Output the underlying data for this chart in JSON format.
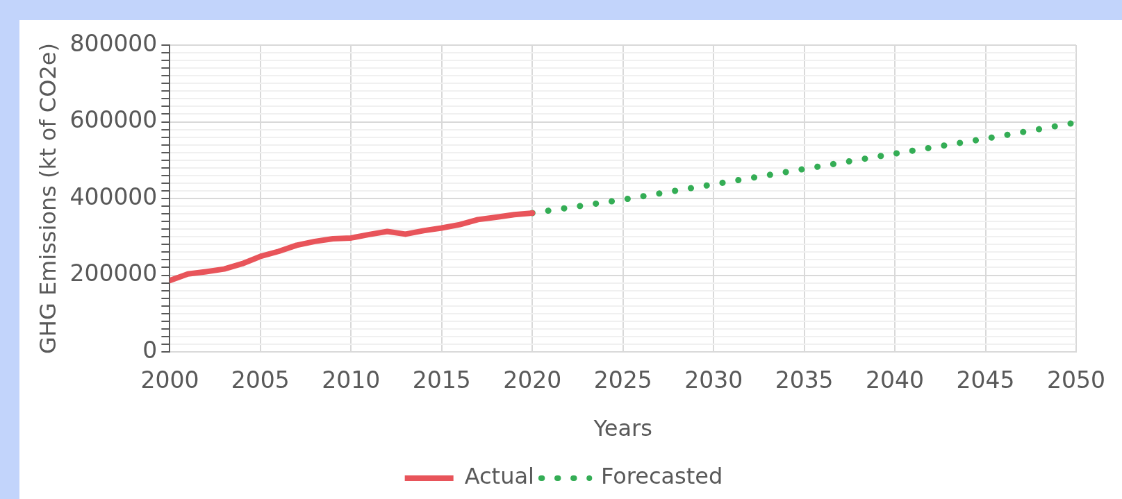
{
  "chart_data": {
    "type": "line",
    "xlabel": "Years",
    "ylabel": "GHG Emissions (kt of CO2e)",
    "xlim": [
      2000,
      2050
    ],
    "xticks": [
      2000,
      2005,
      2010,
      2015,
      2020,
      2025,
      2030,
      2035,
      2040,
      2045,
      2050
    ],
    "ylim": [
      0,
      800000
    ],
    "yticks": [
      0,
      {
        "value": 20000,
        "label": null
      },
      {
        "value": 40000,
        "label": null
      },
      {
        "value": 60000,
        "label": null
      },
      {
        "value": 80000,
        "label": null
      },
      {
        "value": 100000,
        "label": null
      },
      {
        "value": 120000,
        "label": null
      },
      {
        "value": 140000,
        "label": null
      },
      {
        "value": 160000,
        "label": null
      },
      {
        "value": 180000,
        "label": null
      },
      200000,
      {
        "value": 220000,
        "label": null
      },
      {
        "value": 240000,
        "label": null
      },
      {
        "value": 260000,
        "label": null
      },
      {
        "value": 280000,
        "label": null
      },
      {
        "value": 300000,
        "label": null
      },
      {
        "value": 320000,
        "label": null
      },
      {
        "value": 340000,
        "label": null
      },
      {
        "value": 360000,
        "label": null
      },
      {
        "value": 380000,
        "label": null
      },
      400000,
      {
        "value": 420000,
        "label": null
      },
      {
        "value": 440000,
        "label": null
      },
      {
        "value": 460000,
        "label": null
      },
      {
        "value": 480000,
        "label": null
      },
      {
        "value": 500000,
        "label": null
      },
      {
        "value": 520000,
        "label": null
      },
      {
        "value": 540000,
        "label": null
      },
      {
        "value": 560000,
        "label": null
      },
      {
        "value": 580000,
        "label": null
      },
      600000,
      {
        "value": 620000,
        "label": null
      },
      {
        "value": 640000,
        "label": null
      },
      {
        "value": 660000,
        "label": null
      },
      {
        "value": 680000,
        "label": null
      },
      {
        "value": 700000,
        "label": null
      },
      {
        "value": 720000,
        "label": null
      },
      {
        "value": 740000,
        "label": null
      },
      {
        "value": 760000,
        "label": null
      },
      {
        "value": 780000,
        "label": null
      },
      800000
    ],
    "grid": true,
    "legend": "bottom",
    "marker": "none",
    "series": [
      {
        "name": "Actual",
        "color": "#e8545a",
        "line_style": "solid",
        "x": [
          2000,
          2001,
          2002,
          2003,
          2004,
          2005,
          2006,
          2007,
          2008,
          2009,
          2010,
          2011,
          2012,
          2013,
          2014,
          2015,
          2016,
          2017,
          2018,
          2019,
          2020
        ],
        "values": [
          186000,
          203000,
          209000,
          216000,
          230000,
          249000,
          262000,
          278000,
          288000,
          295000,
          297000,
          306000,
          314000,
          307000,
          316000,
          323000,
          332000,
          345000,
          351000,
          358000,
          362000
        ]
      },
      {
        "name": "Forecasted",
        "color": "#34ad55",
        "line_style": "dotted",
        "x": [
          2020,
          2025,
          2030,
          2035,
          2040,
          2045,
          2050
        ],
        "values": [
          362000,
          397000,
          437000,
          477000,
          517000,
          556000,
          598000
        ]
      }
    ]
  }
}
